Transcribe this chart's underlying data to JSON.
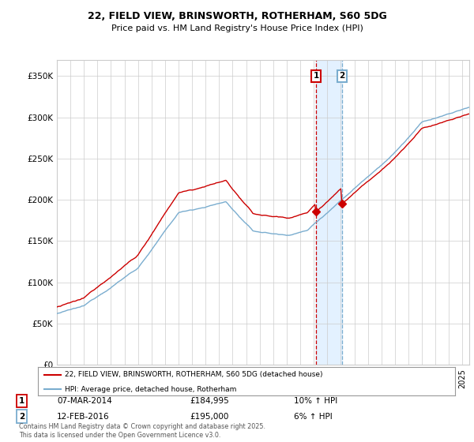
{
  "title": "22, FIELD VIEW, BRINSWORTH, ROTHERHAM, S60 5DG",
  "subtitle": "Price paid vs. HM Land Registry's House Price Index (HPI)",
  "legend_entry1": "22, FIELD VIEW, BRINSWORTH, ROTHERHAM, S60 5DG (detached house)",
  "legend_entry2": "HPI: Average price, detached house, Rotherham",
  "annotation1_label": "1",
  "annotation1_date": "07-MAR-2014",
  "annotation1_price": "£184,995",
  "annotation1_hpi": "10% ↑ HPI",
  "annotation2_label": "2",
  "annotation2_date": "12-FEB-2016",
  "annotation2_price": "£195,000",
  "annotation2_hpi": "6% ↑ HPI",
  "footer": "Contains HM Land Registry data © Crown copyright and database right 2025.\nThis data is licensed under the Open Government Licence v3.0.",
  "color_red": "#cc0000",
  "color_blue": "#7aadcf",
  "color_shading": "#ddeeff",
  "background_color": "#ffffff",
  "grid_color": "#cccccc",
  "annotation_box_color_1": "#cc0000",
  "annotation_box_color_2": "#7aadcf",
  "ylim": [
    0,
    370000
  ],
  "yticks": [
    0,
    50000,
    100000,
    150000,
    200000,
    250000,
    300000,
    350000
  ],
  "start_year": 1995,
  "end_year": 2025,
  "t_sale1": 2014.17,
  "t_sale2": 2016.08,
  "val_sale1": 184995,
  "val_sale2": 195000
}
